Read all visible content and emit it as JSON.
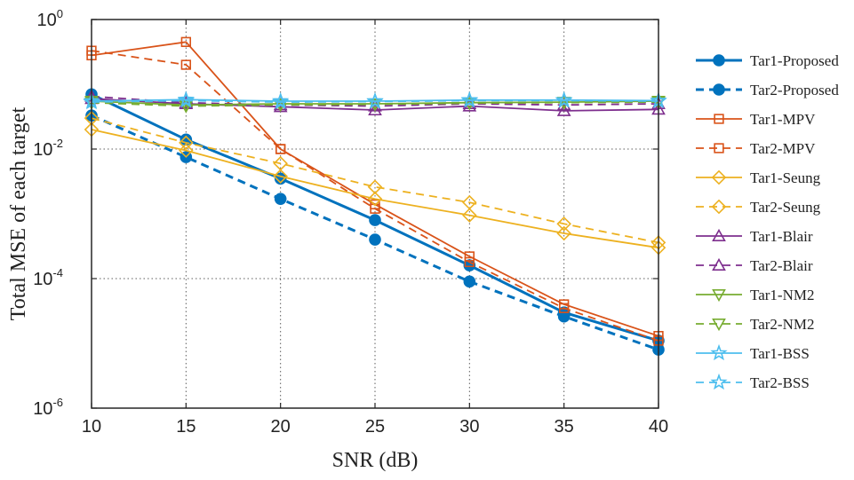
{
  "chart_data": {
    "type": "line",
    "xlabel": "SNR (dB)",
    "ylabel": "Total MSE of each target",
    "xlim": [
      10,
      40
    ],
    "ylim": [
      1e-06,
      1
    ],
    "yscale": "log",
    "grid": true,
    "legend_position": "right",
    "x": [
      10,
      15,
      20,
      25,
      30,
      35,
      40
    ],
    "x_ticks": [
      "10",
      "15",
      "20",
      "25",
      "30",
      "35",
      "40"
    ],
    "y_ticks": [
      {
        "base": "10",
        "exp": "0",
        "value": 1
      },
      {
        "base": "10",
        "exp": "-2",
        "value": 0.01
      },
      {
        "base": "10",
        "exp": "-4",
        "value": 0.0001
      },
      {
        "base": "10",
        "exp": "-6",
        "value": 1e-06
      }
    ],
    "series": [
      {
        "name": "Tar1-Proposed",
        "color": "#0072BD",
        "dash": "solid",
        "marker": "filled-circle",
        "values": [
          0.07,
          0.014,
          0.0035,
          0.0008,
          0.00016,
          3e-05,
          1.1e-05
        ]
      },
      {
        "name": "Tar2-Proposed",
        "color": "#0072BD",
        "dash": "dashed",
        "marker": "filled-circle",
        "values": [
          0.033,
          0.0075,
          0.0017,
          0.0004,
          9e-05,
          2.6e-05,
          8e-06
        ]
      },
      {
        "name": "Tar1-MPV",
        "color": "#D95319",
        "dash": "solid",
        "marker": "square",
        "values": [
          0.28,
          0.45,
          0.01,
          0.0014,
          0.00022,
          4e-05,
          1.3e-05
        ]
      },
      {
        "name": "Tar2-MPV",
        "color": "#D95319",
        "dash": "dashed",
        "marker": "square",
        "values": [
          0.33,
          0.2,
          0.01,
          0.0012,
          0.00018,
          3.5e-05,
          1.1e-05
        ]
      },
      {
        "name": "Tar1-Seung",
        "color": "#EDB120",
        "dash": "solid",
        "marker": "diamond",
        "values": [
          0.02,
          0.0095,
          0.0038,
          0.0017,
          0.00095,
          0.0005,
          0.0003
        ]
      },
      {
        "name": "Tar2-Seung",
        "color": "#EDB120",
        "dash": "dashed",
        "marker": "diamond",
        "values": [
          0.03,
          0.0125,
          0.006,
          0.0026,
          0.0015,
          0.0007,
          0.00036
        ]
      },
      {
        "name": "Tar1-Blair",
        "color": "#7E2F8E",
        "dash": "solid",
        "marker": "triangle-up",
        "values": [
          0.06,
          0.05,
          0.045,
          0.04,
          0.046,
          0.039,
          0.041
        ]
      },
      {
        "name": "Tar2-Blair",
        "color": "#7E2F8E",
        "dash": "dashed",
        "marker": "triangle-up",
        "values": [
          0.065,
          0.052,
          0.048,
          0.046,
          0.05,
          0.048,
          0.05
        ]
      },
      {
        "name": "Tar1-NM2",
        "color": "#77AC30",
        "dash": "solid",
        "marker": "triangle-down",
        "values": [
          0.055,
          0.048,
          0.05,
          0.05,
          0.052,
          0.053,
          0.055
        ]
      },
      {
        "name": "Tar2-NM2",
        "color": "#77AC30",
        "dash": "dashed",
        "marker": "triangle-down",
        "values": [
          0.052,
          0.046,
          0.048,
          0.049,
          0.051,
          0.052,
          0.053
        ]
      },
      {
        "name": "Tar1-BSS",
        "color": "#4DBEEE",
        "dash": "solid",
        "marker": "star",
        "values": [
          0.055,
          0.058,
          0.055,
          0.055,
          0.057,
          0.057,
          0.056
        ]
      },
      {
        "name": "Tar2-BSS",
        "color": "#4DBEEE",
        "dash": "dashed",
        "marker": "star",
        "values": [
          0.053,
          0.056,
          0.053,
          0.054,
          0.056,
          0.056,
          0.055
        ]
      }
    ]
  }
}
